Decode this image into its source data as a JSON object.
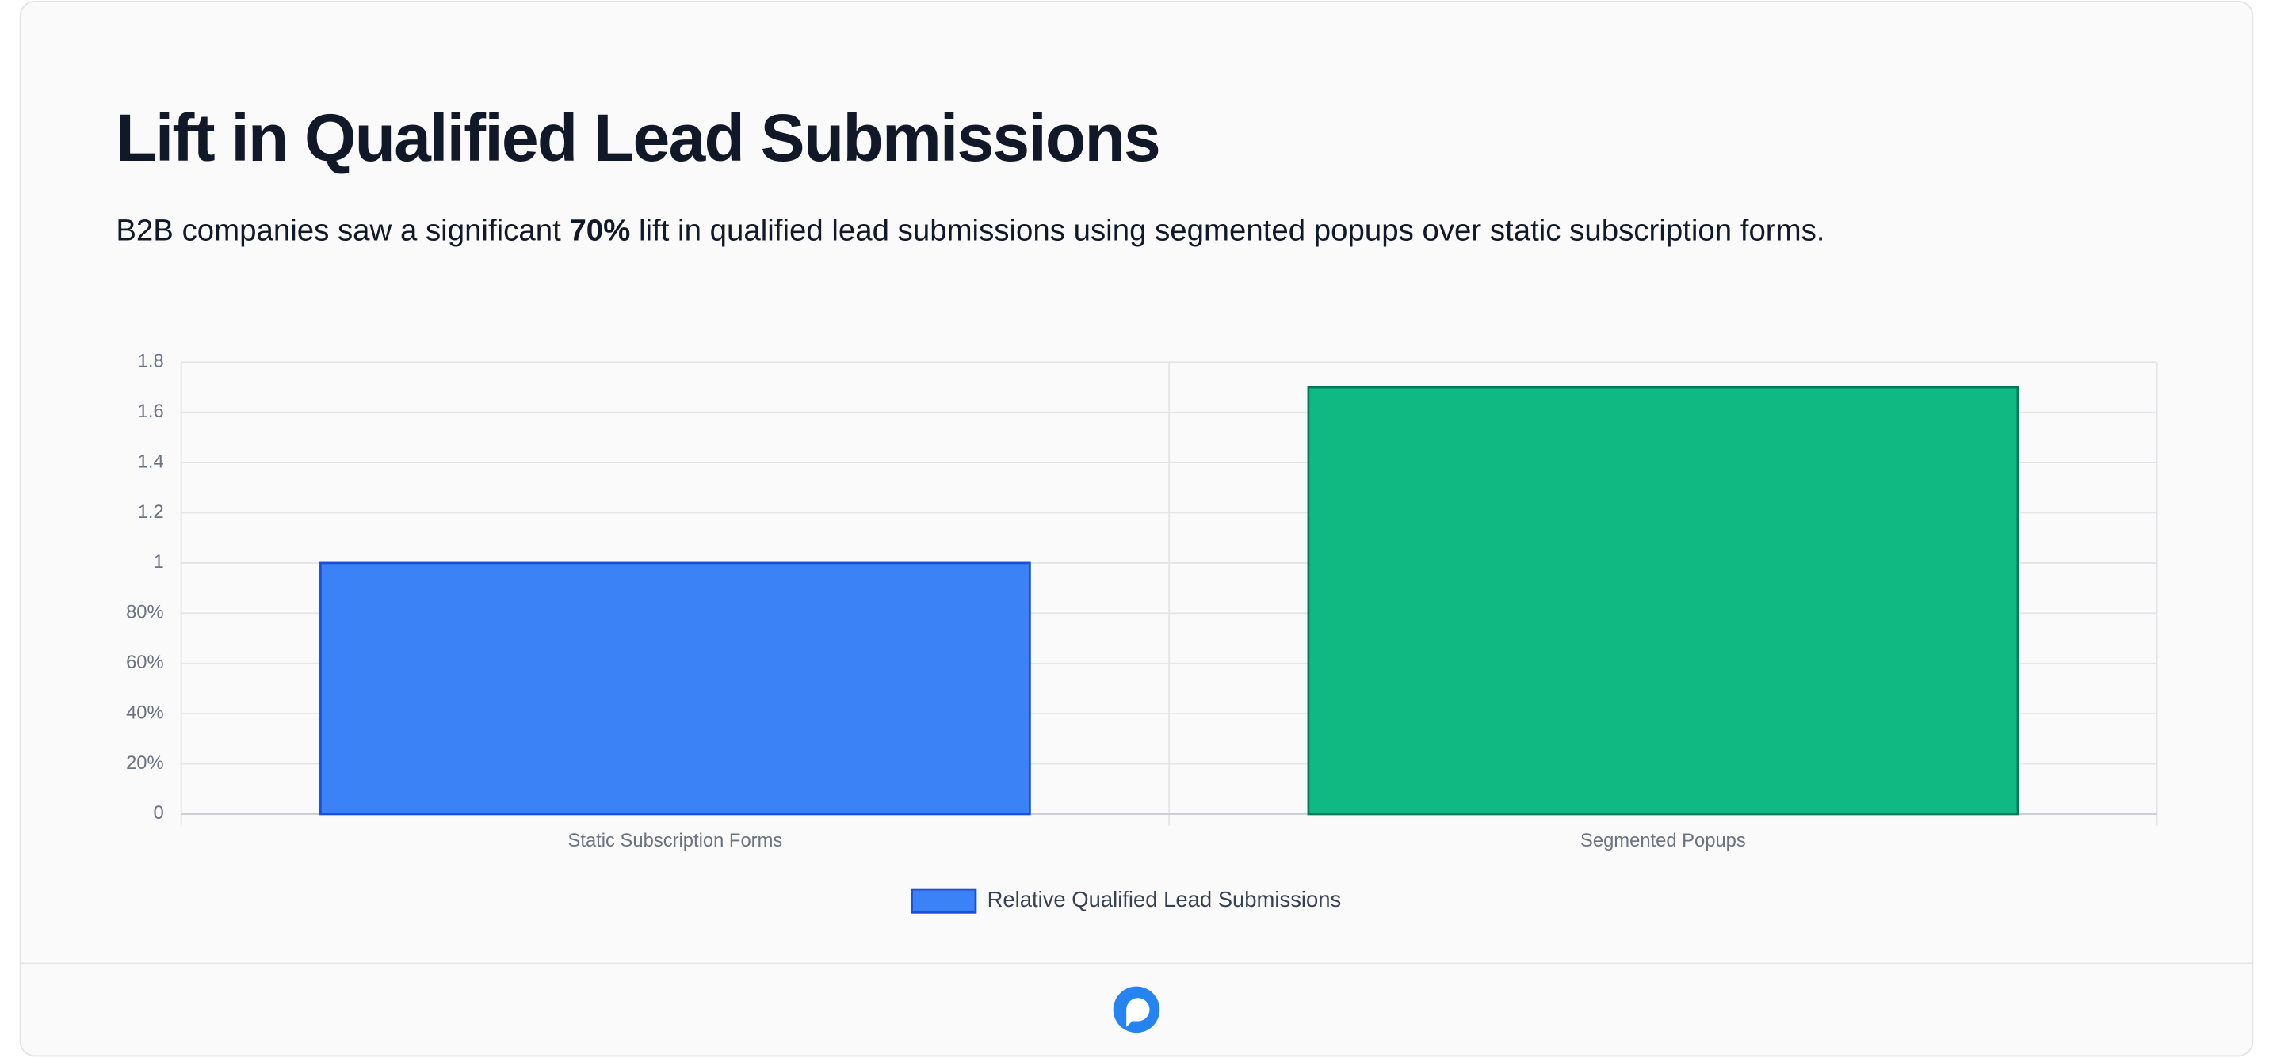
{
  "chart_data": {
    "type": "bar",
    "title": "Lift in Qualified Lead Submissions",
    "subtitle": [
      "B2B companies saw a significant ",
      "70%",
      " lift in qualified lead submissions using segmented popups over static subscription forms."
    ],
    "categories": [
      "Static Subscription Forms",
      "Segmented Popups"
    ],
    "series": [
      {
        "name": "Relative Qualified Lead Submissions",
        "color": "#3b82f6",
        "bar_colors": [
          "#3b82f6",
          "#10b981"
        ],
        "border_colors": [
          "#1d4ed8",
          "#047857"
        ],
        "values": [
          1,
          1.7
        ]
      }
    ],
    "ylim": [
      0,
      1.8
    ],
    "yticks": [
      0,
      {
        "value": 0.2,
        "label": "20%"
      },
      {
        "value": 0.4,
        "label": "40%"
      },
      {
        "value": 0.6,
        "label": "60%"
      },
      {
        "value": 0.8,
        "label": "80%"
      },
      1,
      1.2,
      1.4,
      1.6,
      1.8
    ],
    "grid": true
  }
}
